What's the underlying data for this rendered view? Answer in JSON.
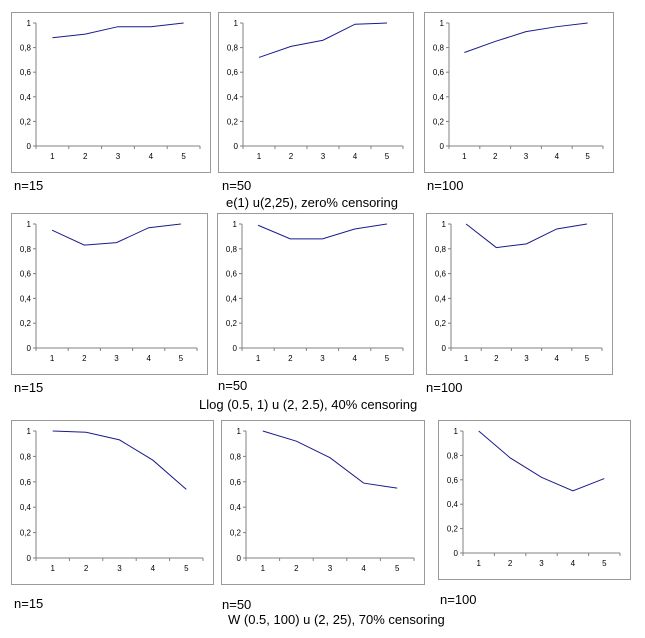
{
  "colors": {
    "series": "#1a1a8c",
    "axis": "#808080",
    "border": "#9a9a9a"
  },
  "chart_data": [
    {
      "type": "line",
      "x": [
        1,
        2,
        3,
        4,
        5
      ],
      "values": [
        0.88,
        0.91,
        0.97,
        0.97,
        1.0
      ],
      "ylim": [
        0,
        1
      ],
      "yticks": [
        "0",
        "0,2",
        "0,4",
        "0,6",
        "0,8",
        "1"
      ],
      "xticks": [
        "1",
        "2",
        "3",
        "4",
        "5"
      ],
      "label": "n=15"
    },
    {
      "type": "line",
      "x": [
        1,
        2,
        3,
        4,
        5
      ],
      "values": [
        0.72,
        0.81,
        0.86,
        0.99,
        1.0
      ],
      "ylim": [
        0,
        1
      ],
      "yticks": [
        "0",
        "0,2",
        "0,4",
        "0,6",
        "0,8",
        "1"
      ],
      "xticks": [
        "1",
        "2",
        "3",
        "4",
        "5"
      ],
      "label": "n=50"
    },
    {
      "type": "line",
      "x": [
        1,
        2,
        3,
        4,
        5
      ],
      "values": [
        0.76,
        0.85,
        0.93,
        0.97,
        1.0
      ],
      "ylim": [
        0,
        1
      ],
      "yticks": [
        "0",
        "0,2",
        "0,4",
        "0,6",
        "0,8",
        "1"
      ],
      "xticks": [
        "1",
        "2",
        "3",
        "4",
        "5"
      ],
      "label": "n=100"
    },
    {
      "type": "line",
      "x": [
        1,
        2,
        3,
        4,
        5
      ],
      "values": [
        0.95,
        0.83,
        0.85,
        0.97,
        1.0
      ],
      "ylim": [
        0,
        1
      ],
      "yticks": [
        "0",
        "0,2",
        "0,4",
        "0,6",
        "0,8",
        "1"
      ],
      "xticks": [
        "1",
        "2",
        "3",
        "4",
        "5"
      ],
      "label": "n=15"
    },
    {
      "type": "line",
      "x": [
        1,
        2,
        3,
        4,
        5
      ],
      "values": [
        0.99,
        0.88,
        0.88,
        0.96,
        1.0
      ],
      "ylim": [
        0,
        1
      ],
      "yticks": [
        "0",
        "0,2",
        "0,4",
        "0,6",
        "0,8",
        "1"
      ],
      "xticks": [
        "1",
        "2",
        "3",
        "4",
        "5"
      ],
      "label": "n=50"
    },
    {
      "type": "line",
      "x": [
        1,
        2,
        3,
        4,
        5
      ],
      "values": [
        1.0,
        0.81,
        0.84,
        0.96,
        1.0
      ],
      "ylim": [
        0,
        1
      ],
      "yticks": [
        "0",
        "0,2",
        "0,4",
        "0,6",
        "0,8",
        "1"
      ],
      "xticks": [
        "1",
        "2",
        "3",
        "4",
        "5"
      ],
      "label": "n=100"
    },
    {
      "type": "line",
      "x": [
        1,
        2,
        3,
        4,
        5
      ],
      "values": [
        1.0,
        0.99,
        0.93,
        0.77,
        0.54
      ],
      "ylim": [
        0,
        1
      ],
      "yticks": [
        "0",
        "0,2",
        "0,4",
        "0,6",
        "0,8",
        "1"
      ],
      "xticks": [
        "1",
        "2",
        "3",
        "4",
        "5"
      ],
      "label": "n=15"
    },
    {
      "type": "line",
      "x": [
        1,
        2,
        3,
        4,
        5
      ],
      "values": [
        1.0,
        0.92,
        0.79,
        0.59,
        0.55
      ],
      "ylim": [
        0,
        1
      ],
      "yticks": [
        "0",
        "0,2",
        "0,4",
        "0,6",
        "0,8",
        "1"
      ],
      "xticks": [
        "1",
        "2",
        "3",
        "4",
        "5"
      ],
      "label": "n=50"
    },
    {
      "type": "line",
      "x": [
        1,
        2,
        3,
        4,
        5
      ],
      "values": [
        1.0,
        0.78,
        0.62,
        0.51,
        0.61
      ],
      "ylim": [
        0,
        1
      ],
      "yticks": [
        "0",
        "0,2",
        "0,4",
        "0,6",
        "0,8",
        "1"
      ],
      "xticks": [
        "1",
        "2",
        "3",
        "4",
        "5"
      ],
      "label": "n=100"
    }
  ],
  "captions": [
    "e(1) u(2,25), zero% censoring",
    "Llog (0.5, 1) u (2, 2.5), 40% censoring",
    "W (0.5, 100) u (2, 25), 70% censoring"
  ]
}
